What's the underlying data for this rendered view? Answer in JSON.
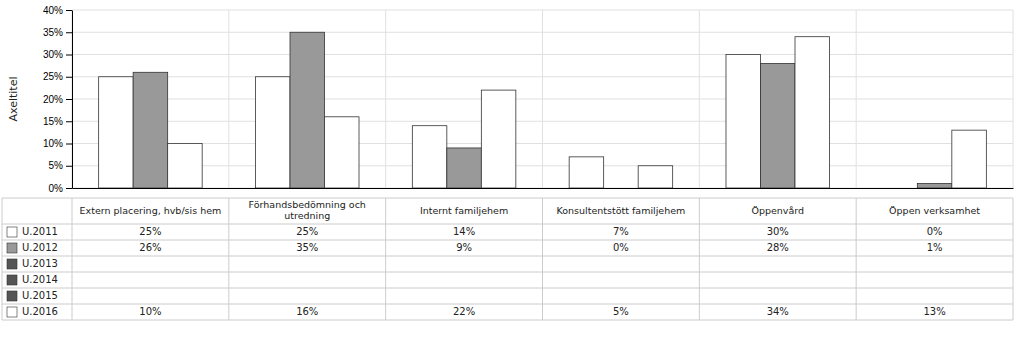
{
  "chart_data": {
    "type": "bar",
    "ylabel": "Axeltitel",
    "categories": [
      "Extern placering, hvb/sis hem",
      "Förhandsbedömning och\nutredning",
      "Internt familjehem",
      "Konsultentstött familjehem",
      "Öppenvård",
      "Öppen verksamhet"
    ],
    "series": [
      {
        "name": "U.2011",
        "color": "#ffffff",
        "values": [
          0.25,
          0.25,
          0.14,
          0.07,
          0.3,
          0.0
        ],
        "value_labels": [
          "25%",
          "25%",
          "14%",
          "7%",
          "30%",
          "0%"
        ]
      },
      {
        "name": "U.2012",
        "color": "#999999",
        "values": [
          0.26,
          0.35,
          0.09,
          0.0,
          0.28,
          0.01
        ],
        "value_labels": [
          "26%",
          "35%",
          "9%",
          "0%",
          "28%",
          "1%"
        ]
      },
      {
        "name": "U.2013",
        "color": "#555555",
        "values": [
          null,
          null,
          null,
          null,
          null,
          null
        ]
      },
      {
        "name": "U.2014",
        "color": "#555555",
        "values": [
          null,
          null,
          null,
          null,
          null,
          null
        ]
      },
      {
        "name": "U.2015",
        "color": "#555555",
        "values": [
          null,
          null,
          null,
          null,
          null,
          null
        ]
      },
      {
        "name": "U.2016",
        "color": "#ffffff",
        "values": [
          0.1,
          0.16,
          0.22,
          0.05,
          0.34,
          0.13
        ],
        "value_labels": [
          "10%",
          "16%",
          "22%",
          "5%",
          "34%",
          "13%"
        ]
      }
    ],
    "ylim": [
      0,
      0.4
    ],
    "yticks": [
      {
        "value": 0.0,
        "label": "0%"
      },
      {
        "value": 0.05,
        "label": "5%"
      },
      {
        "value": 0.1,
        "label": "10%"
      },
      {
        "value": 0.15,
        "label": "15%"
      },
      {
        "value": 0.2,
        "label": "20%"
      },
      {
        "value": 0.25,
        "label": "25%"
      },
      {
        "value": 0.3,
        "label": "30%"
      },
      {
        "value": 0.35,
        "label": "35%"
      },
      {
        "value": 0.4,
        "label": "40%"
      }
    ],
    "grid": true,
    "data_labels": true
  }
}
